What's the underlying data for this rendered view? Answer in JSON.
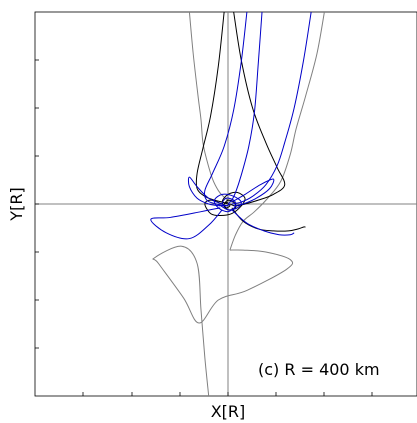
{
  "chart_data": {
    "type": "line",
    "title": "",
    "xlabel": "X[R]",
    "ylabel": "Y[R]",
    "annotation": "(c)  R = 400 km",
    "grid": false,
    "axes_lines": {
      "x_zero": true,
      "y_zero": true
    },
    "xlim": [
      -10,
      10
    ],
    "ylim": [
      -10,
      10
    ],
    "series": [
      {
        "color": "#808080",
        "curves": [
          {
            "x": [
              -2.0,
              -1.8,
              -1.55,
              -1.4,
              -1.3,
              -1.1,
              -0.8,
              -0.5,
              -0.25,
              0.0,
              0.2,
              0.4,
              0.6
            ],
            "y": [
              10.0,
              7.8,
              5.6,
              4.4,
              3.2,
              2.3,
              1.3,
              0.7,
              0.4,
              0.2,
              0.1,
              0.05,
              0.0
            ]
          },
          {
            "x": [
              5.1,
              4.7,
              4.1,
              3.6,
              3.3,
              2.8,
              2.1,
              1.4,
              0.8,
              0.4,
              0.1
            ],
            "y": [
              10.0,
              7.8,
              5.6,
              3.9,
              2.6,
              1.2,
              0.3,
              -0.4,
              -0.9,
              -1.6,
              -2.4
            ]
          },
          {
            "x": [
              0.1,
              0.8,
              2.0,
              3.3,
              3.1,
              1.0,
              -0.5,
              -1.5,
              -2.3,
              -3.6,
              -3.8,
              -2.4,
              -1.6,
              -1.4,
              -1.2,
              -1.0
            ],
            "y": [
              -2.4,
              -2.4,
              -2.5,
              -2.9,
              -3.4,
              -4.5,
              -5.0,
              -6.2,
              -4.9,
              -3.1,
              -2.8,
              -2.2,
              -3.1,
              -5.5,
              -8.0,
              -10.0
            ]
          }
        ]
      },
      {
        "color": "#000000",
        "curves": [
          {
            "x": [
              -0.2,
              -0.5,
              -0.9,
              -1.3,
              -1.6,
              -1.6,
              -1.2,
              -0.7,
              -0.3,
              0.0,
              0.1,
              -0.1,
              -0.2,
              0.0
            ],
            "y": [
              10.0,
              7.2,
              4.6,
              2.9,
              1.6,
              0.8,
              0.4,
              0.2,
              0.1,
              0.0,
              -0.1,
              -0.2,
              0.0,
              0.1
            ]
          },
          {
            "x": [
              0.3,
              0.7,
              1.3,
              2.0,
              2.6,
              3.0,
              2.4,
              1.6,
              0.9,
              0.4,
              0.1
            ],
            "y": [
              10.0,
              7.5,
              5.0,
              3.2,
              1.9,
              1.0,
              0.5,
              0.2,
              0.0,
              -0.1,
              0.0
            ]
          },
          {
            "x": [
              -0.3,
              -0.9,
              -1.2,
              -0.9,
              -0.4,
              0.2,
              0.7,
              0.9,
              0.5,
              0.0,
              -0.3,
              0.0,
              0.4,
              0.3,
              0.0,
              -0.2
            ],
            "y": [
              0.0,
              0.2,
              0.0,
              -0.5,
              -0.6,
              -0.5,
              -0.1,
              0.3,
              0.6,
              0.5,
              0.1,
              -0.3,
              -0.2,
              0.1,
              0.2,
              0.0
            ]
          },
          {
            "x": [
              0.2,
              0.8,
              1.6,
              2.4,
              3.2,
              3.7,
              4.0,
              4.1
            ],
            "y": [
              -0.2,
              -0.9,
              -1.3,
              -1.4,
              -1.4,
              -1.3,
              -1.2,
              -1.2
            ]
          }
        ]
      },
      {
        "color": "#0000c8",
        "curves": [
          {
            "x": [
              1.0,
              0.7,
              0.3,
              -0.2,
              -0.8,
              -1.2,
              -1.1,
              -0.6,
              -0.1,
              0.1
            ],
            "y": [
              10.0,
              7.4,
              4.9,
              3.0,
              1.6,
              0.7,
              0.2,
              0.0,
              -0.1,
              0.0
            ]
          },
          {
            "x": [
              1.8,
              1.6,
              1.4,
              1.1,
              0.7,
              0.4,
              0.2,
              0.0
            ],
            "y": [
              10.0,
              7.3,
              4.8,
              3.0,
              1.5,
              0.6,
              0.2,
              0.0
            ]
          },
          {
            "x": [
              4.4,
              4.0,
              3.5,
              3.0,
              2.6,
              2.0,
              1.3,
              0.7,
              0.2
            ],
            "y": [
              10.0,
              7.5,
              5.0,
              3.2,
              2.0,
              1.0,
              0.4,
              0.1,
              0.0
            ]
          },
          {
            "x": [
              -0.3,
              -1.0,
              -1.6,
              -2.0,
              -2.0,
              -1.6,
              -1.0,
              -0.4
            ],
            "y": [
              0.0,
              0.3,
              0.9,
              1.4,
              0.9,
              0.3,
              0.0,
              -0.1
            ]
          },
          {
            "x": [
              0.2,
              0.9,
              1.7,
              2.4,
              2.2,
              1.5,
              0.8,
              0.3
            ],
            "y": [
              0.1,
              0.5,
              1.0,
              1.3,
              0.8,
              0.3,
              0.0,
              -0.1
            ]
          },
          {
            "x": [
              -0.4,
              -1.4,
              -3.0,
              -4.0,
              -3.2,
              -2.0,
              -1.0,
              -0.3
            ],
            "y": [
              -0.2,
              -0.4,
              -0.7,
              -0.8,
              -1.5,
              -1.8,
              -1.1,
              -0.3
            ]
          },
          {
            "x": [
              -0.5,
              0.0,
              0.5,
              0.7,
              0.3,
              -0.3,
              -0.7,
              -0.5,
              0.0,
              0.4,
              0.3,
              -0.1,
              -0.3,
              0.0
            ],
            "y": [
              0.0,
              -0.3,
              -0.2,
              0.1,
              0.4,
              0.5,
              0.2,
              -0.2,
              -0.4,
              -0.1,
              0.2,
              0.3,
              0.0,
              -0.1
            ]
          },
          {
            "x": [
              0.2,
              1.0,
              1.9,
              2.7,
              3.3,
              3.5
            ],
            "y": [
              -0.3,
              -1.0,
              -1.4,
              -1.6,
              -1.6,
              -1.5
            ]
          }
        ]
      }
    ]
  }
}
